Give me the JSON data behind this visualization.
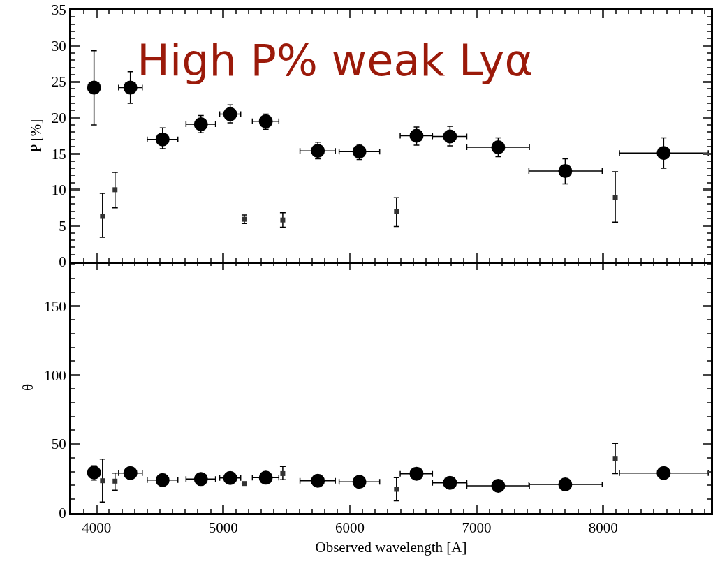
{
  "chart_data": [
    {
      "type": "scatter",
      "title": "High P% weak Lyα",
      "ylabel": "P [%]",
      "xlim": [
        3800,
        8850
      ],
      "xticks": [
        4000,
        5000,
        6000,
        7000,
        8000
      ],
      "ylim": [
        0,
        35
      ],
      "yticks": [
        0,
        5,
        10,
        15,
        20,
        25,
        30,
        35
      ],
      "tick_labels": "y",
      "x": [
        3980,
        4267,
        4521,
        4824,
        5055,
        5336,
        5747,
        6075,
        6526,
        6790,
        7171,
        7700,
        8477
      ],
      "series": [
        {
          "color": "#000000",
          "marker": "circle",
          "values": [
            24.2,
            24.2,
            17.0,
            19.1,
            20.5,
            19.5,
            15.4,
            15.3,
            17.5,
            17.4,
            15.9,
            12.6,
            15.1
          ],
          "errors": [
            [
              19.0,
              29.3
            ],
            [
              22.0,
              26.4
            ],
            [
              15.7,
              18.6
            ],
            [
              17.9,
              20.3
            ],
            [
              19.3,
              21.8
            ],
            [
              18.4,
              20.5
            ],
            [
              14.3,
              16.6
            ],
            [
              14.2,
              16.3
            ],
            [
              16.2,
              18.7
            ],
            [
              16.1,
              18.8
            ],
            [
              14.6,
              17.2
            ],
            [
              10.8,
              14.3
            ],
            [
              13.0,
              17.2
            ]
          ],
          "xerrors": [
            null,
            [
              4174,
              4361
            ],
            [
              4400,
              4642
            ],
            [
              4706,
              4939
            ],
            [
              4972,
              5138
            ],
            [
              5230,
              5439
            ],
            [
              5606,
              5885
            ],
            [
              5915,
              6235
            ],
            [
              6397,
              6652
            ],
            [
              6652,
              6923
            ],
            [
              6923,
              7417
            ],
            [
              7413,
              7992
            ],
            [
              8128,
              8829
            ]
          ]
        },
        {
          "color": "#333333",
          "marker": "square",
          "x": [
            4047,
            4146,
            5167,
            5470,
            6368,
            8095
          ],
          "values": [
            6.3,
            10.0,
            5.9,
            5.8,
            7.0,
            8.9
          ],
          "errors": [
            [
              3.4,
              9.5
            ],
            [
              7.5,
              12.4
            ],
            [
              5.3,
              6.5
            ],
            [
              4.8,
              6.8
            ],
            [
              4.9,
              8.9
            ],
            [
              5.5,
              12.5
            ]
          ]
        }
      ]
    },
    {
      "type": "scatter",
      "xlabel": "Observed wavelength [A]",
      "ylabel": "θ",
      "xlim": [
        3800,
        8850
      ],
      "xticks": [
        4000,
        5000,
        6000,
        7000,
        8000
      ],
      "ylim": [
        0,
        182
      ],
      "yticks": [
        0,
        50,
        100,
        150
      ],
      "x": [
        3980,
        4267,
        4521,
        4824,
        5055,
        5336,
        5747,
        6075,
        6526,
        6790,
        7171,
        7700,
        8477
      ],
      "series": [
        {
          "color": "#000000",
          "marker": "circle",
          "values": [
            29.3,
            29.0,
            23.9,
            24.6,
            25.4,
            25.6,
            23.4,
            22.6,
            28.5,
            21.9,
            19.7,
            20.7,
            29.0
          ],
          "errors": [
            [
              23.9,
              34.3
            ],
            null,
            null,
            null,
            null,
            null,
            null,
            null,
            null,
            null,
            null,
            null,
            null
          ],
          "xerrors": [
            null,
            [
              4174,
              4361
            ],
            [
              4400,
              4642
            ],
            [
              4706,
              4939
            ],
            [
              4972,
              5138
            ],
            [
              5230,
              5439
            ],
            [
              5606,
              5885
            ],
            [
              5915,
              6235
            ],
            [
              6397,
              6652
            ],
            [
              6652,
              6923
            ],
            [
              6923,
              7417
            ],
            [
              7413,
              7992
            ],
            [
              8128,
              8829
            ]
          ]
        },
        {
          "color": "#333333",
          "marker": "square",
          "x": [
            4047,
            4146,
            5167,
            5470,
            6368,
            8095
          ],
          "values": [
            23.4,
            23.1,
            21.4,
            28.6,
            17.2,
            39.6
          ],
          "errors": [
            [
              7.9,
              39.1
            ],
            [
              16.5,
              29.0
            ],
            null,
            [
              24.2,
              33.7
            ],
            [
              8.8,
              25.6
            ],
            [
              28.6,
              50.4
            ]
          ]
        }
      ]
    }
  ]
}
